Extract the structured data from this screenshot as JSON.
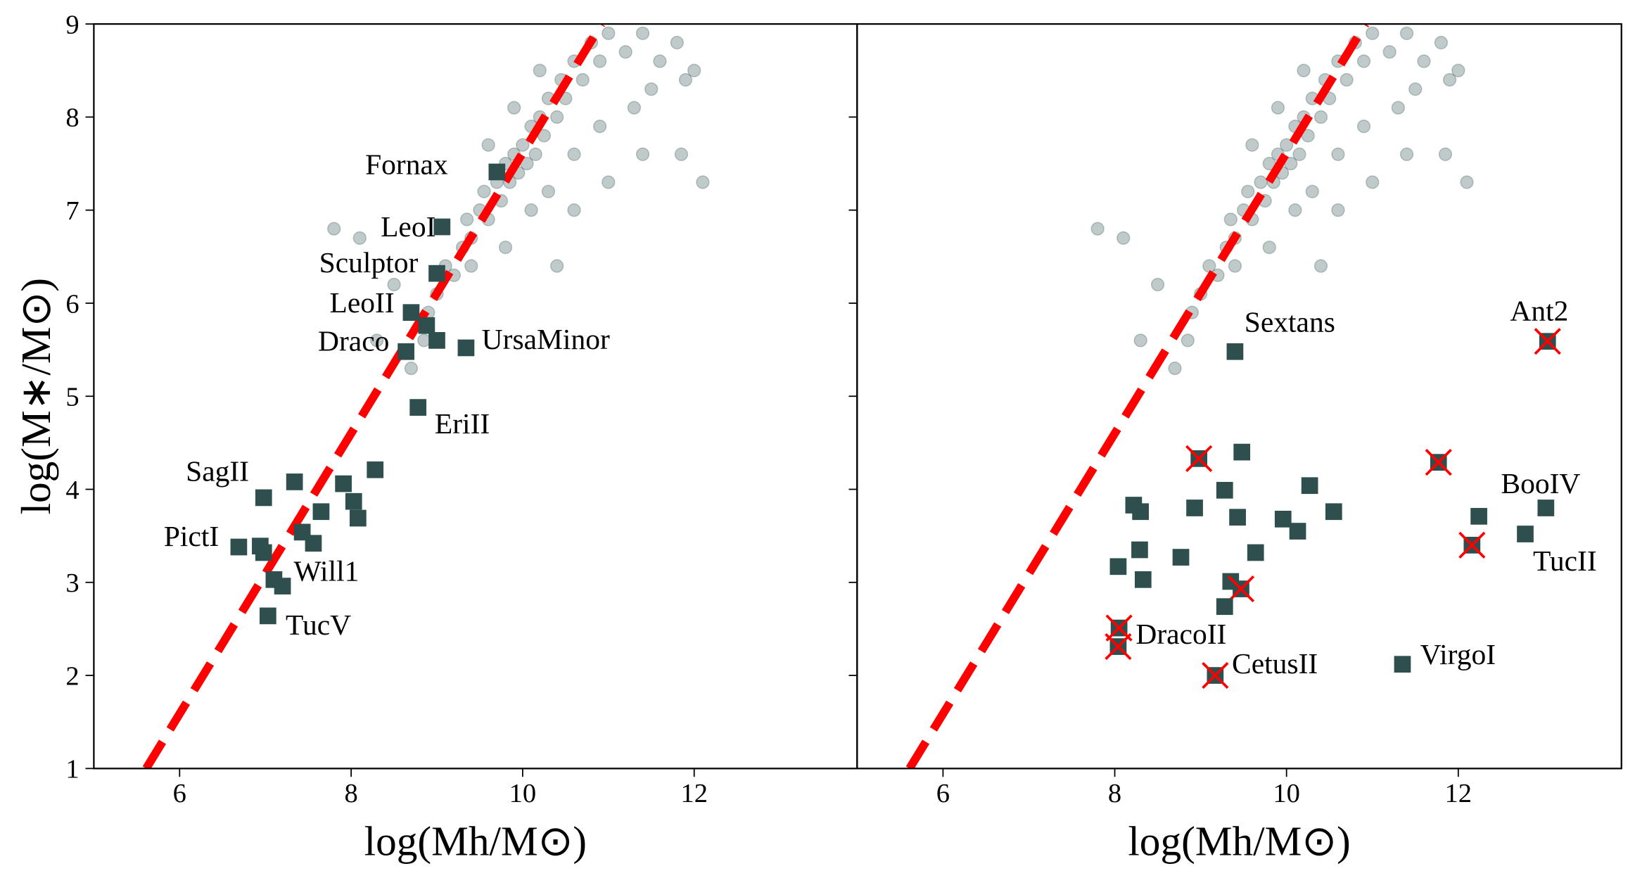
{
  "chart_data": [
    {
      "type": "scatter",
      "xlabel": "log(Mh/M⊙)",
      "ylabel": "log(M∗/M⊙)",
      "xlim": [
        5,
        13.9
      ],
      "ylim": [
        1,
        9
      ],
      "xticks": [
        6,
        8,
        10,
        12
      ],
      "yticks": [
        1,
        2,
        3,
        4,
        5,
        6,
        7,
        8,
        9
      ],
      "show_ytick_labels": true,
      "series": [
        {
          "color": "#2f4f4f",
          "marker": "circle",
          "alpha": 0.3,
          "x": [
            8.7,
            8.85,
            8.9,
            9.0,
            9.1,
            9.2,
            9.3,
            9.35,
            9.4,
            9.5,
            9.55,
            9.6,
            9.7,
            9.75,
            9.8,
            9.85,
            9.9,
            9.95,
            10.0,
            10.05,
            10.1,
            10.15,
            10.2,
            10.25,
            10.3,
            10.4,
            10.45,
            10.5,
            10.6,
            10.7,
            10.8,
            10.9,
            11.0,
            11.2,
            11.4,
            11.6,
            11.8,
            11.5,
            11.9,
            12.0,
            11.3,
            10.9,
            10.6,
            10.3,
            10.1,
            9.8,
            10.6,
            11.0,
            11.4,
            11.85,
            12.1,
            7.8,
            8.1,
            8.5,
            8.3,
            9.4,
            10.4,
            9.6,
            9.9,
            10.2
          ],
          "y": [
            5.3,
            5.6,
            5.9,
            6.1,
            6.4,
            6.3,
            6.6,
            6.9,
            6.7,
            7.0,
            7.2,
            6.9,
            7.3,
            7.1,
            7.5,
            7.3,
            7.6,
            7.4,
            7.7,
            7.5,
            7.9,
            7.6,
            8.0,
            7.8,
            8.2,
            8.0,
            8.4,
            8.2,
            8.6,
            8.4,
            8.8,
            8.6,
            8.9,
            8.7,
            8.9,
            8.6,
            8.8,
            8.3,
            8.4,
            8.5,
            8.1,
            7.9,
            7.6,
            7.2,
            7.0,
            6.6,
            7.0,
            7.3,
            7.6,
            7.6,
            7.3,
            6.8,
            6.7,
            6.2,
            5.6,
            6.4,
            6.4,
            7.7,
            8.1,
            8.5
          ]
        },
        {
          "color": "#2f4f4f",
          "marker": "square",
          "x": [
            9.7,
            9.06,
            9.0,
            8.7,
            8.64,
            8.88,
            9.0,
            9.34,
            8.78,
            6.98,
            7.34,
            7.91,
            8.28,
            7.65,
            8.03,
            8.08,
            6.69,
            6.94,
            6.98,
            7.43,
            7.56,
            7.1,
            7.2,
            7.03
          ],
          "y": [
            7.41,
            6.82,
            6.32,
            5.9,
            5.48,
            5.76,
            5.6,
            5.52,
            4.88,
            3.91,
            4.08,
            4.06,
            4.21,
            3.76,
            3.87,
            3.69,
            3.38,
            3.39,
            3.32,
            3.54,
            3.42,
            3.03,
            2.96,
            2.64
          ],
          "labels": [
            "Fornax",
            "LeoI",
            "Sculptor",
            "LeoII",
            "Draco",
            null,
            null,
            "UrsaMinor",
            "EriII",
            "SagII",
            null,
            null,
            null,
            null,
            null,
            null,
            "PictI",
            null,
            null,
            null,
            null,
            "Will1",
            null,
            "TucV"
          ]
        }
      ],
      "fit_line": {
        "color": "#ff0000",
        "x": [
          5.61,
          10.92
        ],
        "y": [
          1,
          9
        ]
      }
    },
    {
      "type": "scatter",
      "xlabel": "log(Mh/M⊙)",
      "xlim": [
        5,
        13.9
      ],
      "ylim": [
        1,
        9
      ],
      "xticks": [
        6,
        8,
        10,
        12
      ],
      "yticks": [
        1,
        2,
        3,
        4,
        5,
        6,
        7,
        8,
        9
      ],
      "show_ytick_labels": false,
      "series": [
        {
          "color": "#2f4f4f",
          "marker": "circle",
          "alpha": 0.3,
          "x": [
            8.7,
            8.85,
            8.9,
            9.0,
            9.1,
            9.2,
            9.3,
            9.35,
            9.4,
            9.5,
            9.55,
            9.6,
            9.7,
            9.75,
            9.8,
            9.85,
            9.9,
            9.95,
            10.0,
            10.05,
            10.1,
            10.15,
            10.2,
            10.25,
            10.3,
            10.4,
            10.45,
            10.5,
            10.6,
            10.7,
            10.8,
            10.9,
            11.0,
            11.2,
            11.4,
            11.6,
            11.8,
            11.5,
            11.9,
            12.0,
            11.3,
            10.9,
            10.6,
            10.3,
            10.1,
            9.8,
            10.6,
            11.0,
            11.4,
            11.85,
            12.1,
            7.8,
            8.1,
            8.5,
            8.3,
            9.4,
            10.4,
            9.6,
            9.9,
            10.2
          ],
          "y": [
            5.3,
            5.6,
            5.9,
            6.1,
            6.4,
            6.3,
            6.6,
            6.9,
            6.7,
            7.0,
            7.2,
            6.9,
            7.3,
            7.1,
            7.5,
            7.3,
            7.6,
            7.4,
            7.7,
            7.5,
            7.9,
            7.6,
            8.0,
            7.8,
            8.2,
            8.0,
            8.4,
            8.2,
            8.6,
            8.4,
            8.8,
            8.6,
            8.9,
            8.7,
            8.9,
            8.6,
            8.8,
            8.3,
            8.4,
            8.5,
            8.1,
            7.9,
            7.6,
            7.2,
            7.0,
            6.6,
            7.0,
            7.3,
            7.6,
            7.6,
            7.3,
            6.8,
            6.7,
            6.2,
            5.6,
            6.4,
            6.4,
            7.7,
            8.1,
            8.5
          ]
        },
        {
          "color": "#2f4f4f",
          "marker": "square",
          "cross_color": "#ff0000",
          "x": [
            9.4,
            13.04,
            8.98,
            9.48,
            11.77,
            10.27,
            9.28,
            8.22,
            8.3,
            8.93,
            9.43,
            9.96,
            10.13,
            10.55,
            12.24,
            13.02,
            12.78,
            12.16,
            8.29,
            8.04,
            8.77,
            9.64,
            8.33,
            9.35,
            9.47,
            9.28,
            8.05,
            8.04,
            9.17,
            11.35
          ],
          "y": [
            5.48,
            5.59,
            4.33,
            4.4,
            4.29,
            4.04,
            3.99,
            3.83,
            3.76,
            3.8,
            3.7,
            3.68,
            3.55,
            3.76,
            3.71,
            3.8,
            3.52,
            3.4,
            3.35,
            3.17,
            3.27,
            3.32,
            3.03,
            3.01,
            2.93,
            2.74,
            2.51,
            2.31,
            2.0,
            2.12
          ],
          "labels": [
            "Sextans",
            "Ant2",
            null,
            null,
            null,
            null,
            null,
            null,
            null,
            null,
            null,
            null,
            null,
            null,
            null,
            "BooIV",
            "TucII",
            null,
            null,
            null,
            null,
            null,
            null,
            null,
            null,
            null,
            "DracoII",
            null,
            "CetusII",
            "VirgoI"
          ],
          "crossed": [
            false,
            true,
            true,
            false,
            true,
            false,
            false,
            false,
            false,
            false,
            false,
            false,
            false,
            false,
            false,
            false,
            false,
            true,
            false,
            false,
            false,
            false,
            false,
            false,
            true,
            false,
            true,
            true,
            true,
            false
          ]
        }
      ],
      "fit_line": {
        "color": "#ff0000",
        "x": [
          5.61,
          10.92
        ],
        "y": [
          1,
          9
        ]
      }
    }
  ]
}
